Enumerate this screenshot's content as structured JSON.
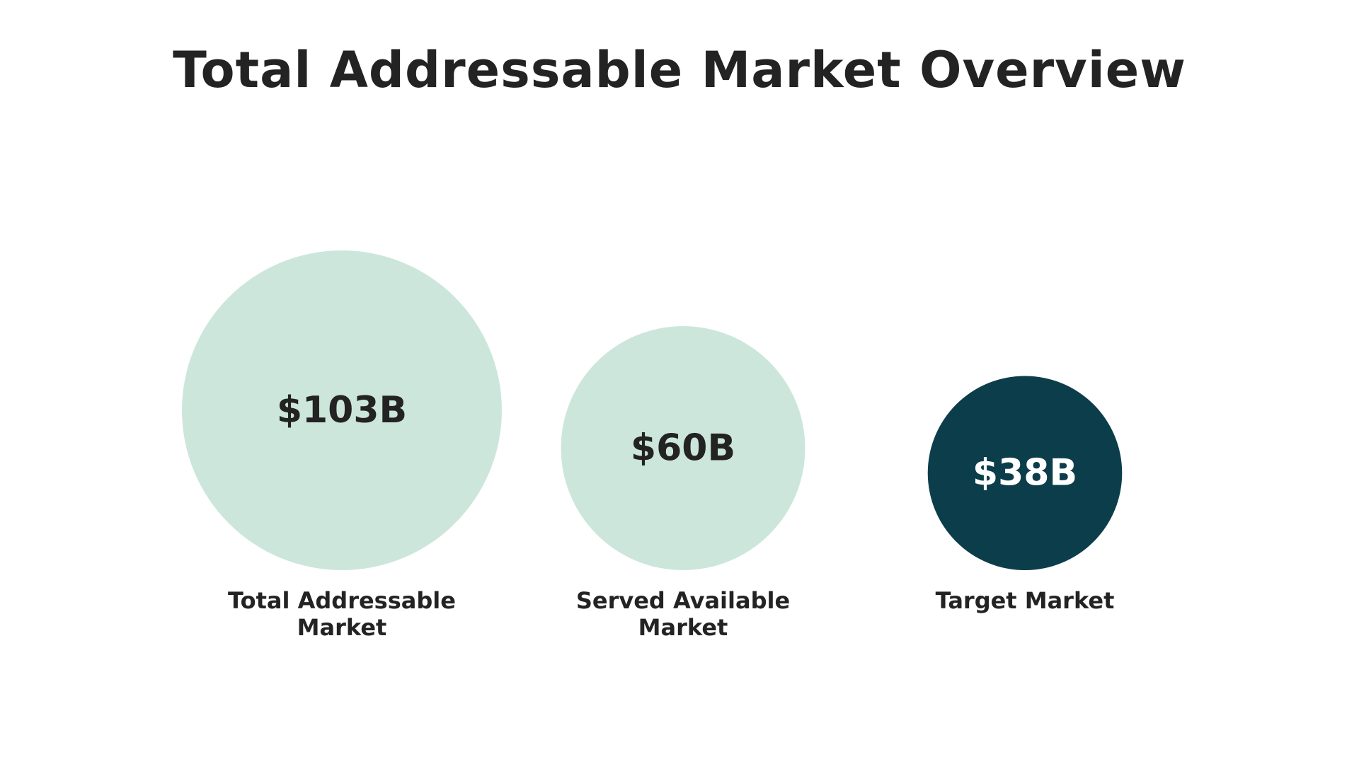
{
  "chart_data": {
    "type": "bubble",
    "title": "Total Addressable Market Overview",
    "categories": [
      "Total Addressable Market",
      "Served Available Market",
      "Target Market"
    ],
    "values": [
      103,
      60,
      38
    ],
    "unit": "$B",
    "value_labels": [
      "$103B",
      "$60B",
      "$38B"
    ],
    "colors": [
      "#cce6dc",
      "#cce6dc",
      "#0c3d4a"
    ],
    "label_colors": [
      "#232323",
      "#232323",
      "#ffffff"
    ]
  }
}
